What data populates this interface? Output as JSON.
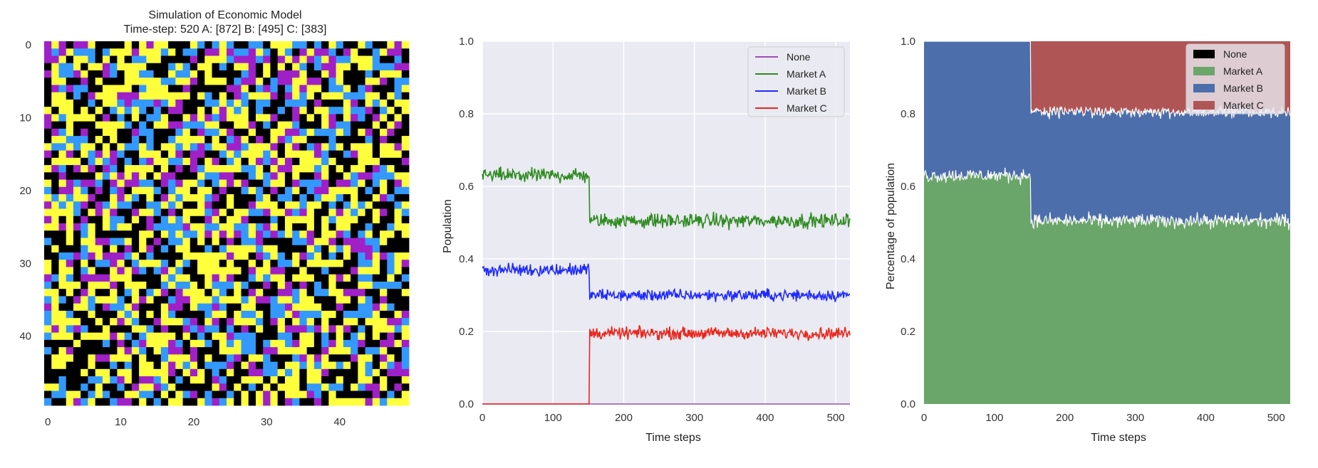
{
  "chart_data": [
    {
      "type": "heatmap",
      "title": "Simulation of Economic Model",
      "subtitle": "Time-step: 520 A: [872] B: [495] C: [383]",
      "grid_size": [
        50,
        50
      ],
      "xticks": [
        "0",
        "10",
        "20",
        "30",
        "40"
      ],
      "yticks": [
        "0",
        "10",
        "20",
        "30",
        "40"
      ],
      "colors": {
        "Market A": "#ffff3c",
        "Market B": "#3399ff",
        "Market C": "#a020c8",
        "None": "#000000"
      },
      "counts": {
        "A": 872,
        "B": 495,
        "C": 383
      }
    },
    {
      "type": "line",
      "xlabel": "Time steps",
      "ylabel": "Population",
      "xlim": [
        0,
        520
      ],
      "ylim": [
        0,
        1
      ],
      "xticks": [
        "0",
        "100",
        "200",
        "300",
        "400",
        "500"
      ],
      "yticks": [
        "0.0",
        "0.2",
        "0.4",
        "0.6",
        "0.8",
        "1.0"
      ],
      "grid": true,
      "legend_position": "top-right",
      "background": "#eaeaf2",
      "series": [
        {
          "name": "None",
          "color": "#9b4fb0",
          "segments": [
            {
              "x0": 0,
              "x1": 520,
              "level": 0.0,
              "noise": 0.0
            }
          ]
        },
        {
          "name": "Market A",
          "color": "#2e8b20",
          "segments": [
            {
              "x0": 0,
              "x1": 152,
              "level": 0.63,
              "noise": 0.012
            },
            {
              "x0": 152,
              "x1": 520,
              "level": 0.505,
              "noise": 0.012
            }
          ]
        },
        {
          "name": "Market B",
          "color": "#1f2bff",
          "segments": [
            {
              "x0": 0,
              "x1": 152,
              "level": 0.37,
              "noise": 0.011
            },
            {
              "x0": 152,
              "x1": 520,
              "level": 0.3,
              "noise": 0.01
            }
          ]
        },
        {
          "name": "Market C",
          "color": "#e8281e",
          "segments": [
            {
              "x0": 0,
              "x1": 152,
              "level": 0.0,
              "noise": 0.0
            },
            {
              "x0": 152,
              "x1": 520,
              "level": 0.195,
              "noise": 0.01
            }
          ]
        }
      ]
    },
    {
      "type": "area",
      "xlabel": "Time steps",
      "ylabel": "Percentage of population",
      "xlim": [
        0,
        520
      ],
      "ylim": [
        0,
        1
      ],
      "xticks": [
        "0",
        "100",
        "200",
        "300",
        "400",
        "500"
      ],
      "yticks": [
        "0.0",
        "0.2",
        "0.4",
        "0.6",
        "0.8",
        "1.0"
      ],
      "legend_position": "top-right",
      "series": [
        {
          "name": "None",
          "color": "#000000"
        },
        {
          "name": "Market A",
          "color": "#6aa56a",
          "segments": [
            {
              "x0": 0,
              "x1": 152,
              "level": 0.63
            },
            {
              "x0": 152,
              "x1": 520,
              "level": 0.505
            }
          ]
        },
        {
          "name": "Market B",
          "color": "#4c6eaa",
          "segments": [
            {
              "x0": 0,
              "x1": 152,
              "level": 0.37
            },
            {
              "x0": 152,
              "x1": 520,
              "level": 0.3
            }
          ]
        },
        {
          "name": "Market C",
          "color": "#b05555",
          "segments": [
            {
              "x0": 0,
              "x1": 152,
              "level": 0.0
            },
            {
              "x0": 152,
              "x1": 520,
              "level": 0.195
            }
          ]
        }
      ]
    }
  ]
}
